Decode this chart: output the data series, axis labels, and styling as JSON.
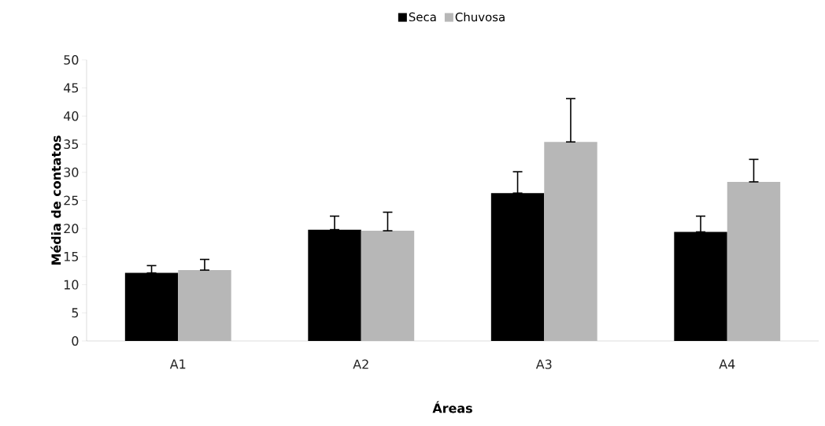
{
  "chart_data": {
    "type": "bar",
    "xlabel": "Áreas",
    "ylabel": "Média de contatos",
    "categories": [
      "A1",
      "A2",
      "A3",
      "A4"
    ],
    "series": [
      {
        "name": "Seca",
        "color": "#000000",
        "values": [
          12.1,
          19.8,
          26.3,
          19.4
        ],
        "errors": [
          [
            12.1,
            13.4
          ],
          [
            19.8,
            22.2
          ],
          [
            26.3,
            30.1
          ],
          [
            19.4,
            22.2
          ]
        ]
      },
      {
        "name": "Chuvosa",
        "color": "#b7b7b7",
        "values": [
          12.6,
          19.6,
          35.4,
          28.3
        ],
        "errors": [
          [
            12.6,
            14.5
          ],
          [
            19.6,
            22.9
          ],
          [
            35.4,
            43.1
          ],
          [
            28.3,
            32.3
          ]
        ]
      }
    ],
    "ylim": [
      0,
      50
    ],
    "yticks": [
      0,
      5,
      10,
      15,
      20,
      25,
      30,
      35,
      40,
      45,
      50
    ],
    "legend": "top"
  }
}
